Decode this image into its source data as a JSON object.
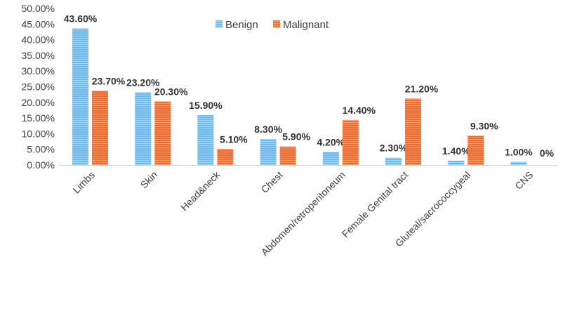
{
  "chart_data": {
    "type": "bar",
    "title": "",
    "xlabel": "",
    "ylabel": "",
    "ylim": [
      0,
      50
    ],
    "yticks": [
      "0.00%",
      "5.00%",
      "10.00%",
      "15.00%",
      "20.00%",
      "25.00%",
      "30.00%",
      "35.00%",
      "40.00%",
      "45.00%",
      "50.00%"
    ],
    "grid": false,
    "legend_position": "top-center",
    "categories": [
      "Limbs",
      "Skin",
      "Head&neck",
      "Chest",
      "Abdomen/retroperitoneum",
      "Female Genital tract",
      "Gluteal/sacrococcygeal",
      "CNS"
    ],
    "series": [
      {
        "name": "Benign",
        "color": "#6cb8f0",
        "values": [
          43.6,
          23.2,
          15.9,
          8.3,
          4.2,
          2.3,
          1.4,
          1.0
        ],
        "labels": [
          "43.60%",
          "23.20%",
          "15.90%",
          "8.30%",
          "4.20%",
          "2.30%",
          "1.40%",
          "1.00%"
        ]
      },
      {
        "name": "Malignant",
        "color": "#f26b2a",
        "values": [
          23.7,
          20.3,
          5.1,
          5.9,
          14.4,
          21.2,
          9.3,
          0
        ],
        "labels": [
          "23.70%",
          "20.30%",
          "5.10%",
          "5.90%",
          "14.40%",
          "21.20%",
          "9.30%",
          "0%"
        ]
      }
    ]
  }
}
